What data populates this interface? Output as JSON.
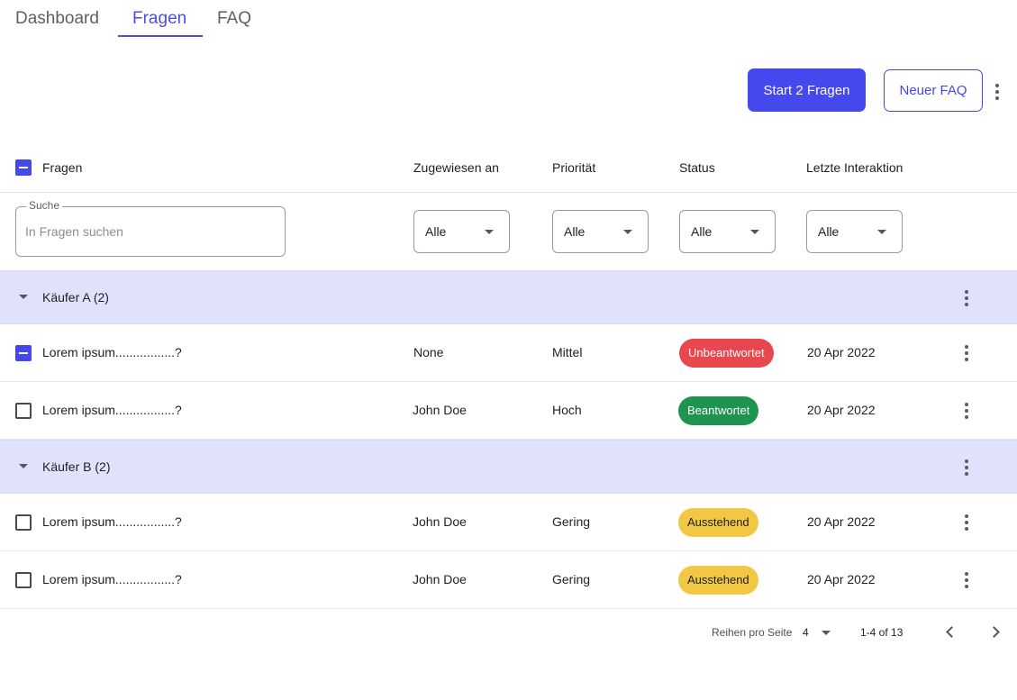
{
  "tabs": [
    {
      "label": "Dashboard",
      "active": false
    },
    {
      "label": "Fragen",
      "active": true
    },
    {
      "label": "FAQ",
      "active": false
    }
  ],
  "actions": {
    "start_label": "Start 2 Fragen",
    "new_faq_label": "Neuer FAQ"
  },
  "table": {
    "columns": {
      "question": "Fragen",
      "assigned": "Zugewiesen an",
      "priority": "Priorität",
      "status": "Status",
      "last_interaction": "Letzte Interaktion"
    },
    "filters": {
      "search_legend": "Suche",
      "search_placeholder": "In Fragen suchen",
      "assigned": "Alle",
      "priority": "Alle",
      "status": "Alle",
      "last_interaction": "Alle"
    },
    "groups": [
      {
        "label": "Käufer A (2)",
        "rows": [
          {
            "question": "Lorem ipsum.................?",
            "assigned": "None",
            "priority": "Mittel",
            "status": "Unbeantwortet",
            "status_color": "#e8474f",
            "date": "20 Apr 2022",
            "checked": "indeterminate"
          },
          {
            "question": "Lorem ipsum.................?",
            "assigned": "John Doe",
            "priority": "Hoch",
            "status": "Beantwortet",
            "status_color": "#1e9450",
            "date": "20 Apr 2022",
            "checked": "unchecked"
          }
        ]
      },
      {
        "label": "Käufer B (2)",
        "rows": [
          {
            "question": "Lorem ipsum.................?",
            "assigned": "John Doe",
            "priority": "Gering",
            "status": "Ausstehend",
            "status_color": "#f2c744",
            "date": "20 Apr 2022",
            "checked": "unchecked"
          },
          {
            "question": "Lorem ipsum.................?",
            "assigned": "John Doe",
            "priority": "Gering",
            "status": "Ausstehend",
            "status_color": "#f2c744",
            "date": "20 Apr 2022",
            "checked": "unchecked"
          }
        ]
      }
    ]
  },
  "pagination": {
    "rows_per_page_label": "Reihen pro Seite",
    "rows_per_page": "4",
    "range": "1-4 of 13"
  },
  "colors": {
    "accent": "#4548ec",
    "group_bg": "#e0e2fb"
  },
  "icons": {
    "more": "more-vert-icon",
    "caret": "arrow-drop-down-icon",
    "prev": "chevron-left-icon",
    "next": "chevron-right-icon"
  }
}
